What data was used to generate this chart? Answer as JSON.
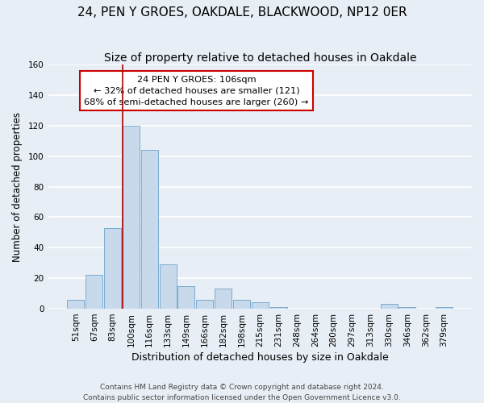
{
  "title": "24, PEN Y GROES, OAKDALE, BLACKWOOD, NP12 0ER",
  "subtitle": "Size of property relative to detached houses in Oakdale",
  "xlabel": "Distribution of detached houses by size in Oakdale",
  "ylabel": "Number of detached properties",
  "bar_labels": [
    "51sqm",
    "67sqm",
    "83sqm",
    "100sqm",
    "116sqm",
    "133sqm",
    "149sqm",
    "166sqm",
    "182sqm",
    "198sqm",
    "215sqm",
    "231sqm",
    "248sqm",
    "264sqm",
    "280sqm",
    "297sqm",
    "313sqm",
    "330sqm",
    "346sqm",
    "362sqm",
    "379sqm"
  ],
  "bar_values": [
    6,
    22,
    53,
    120,
    104,
    29,
    15,
    6,
    13,
    6,
    4,
    1,
    0,
    0,
    0,
    0,
    0,
    3,
    1,
    0,
    1
  ],
  "bar_color": "#c9d9ec",
  "bar_edge_color": "#7aacd0",
  "highlight_line_index": 3,
  "highlight_line_color": "#aa0000",
  "ylim": [
    0,
    160
  ],
  "yticks": [
    0,
    20,
    40,
    60,
    80,
    100,
    120,
    140,
    160
  ],
  "annotation_line1": "24 PEN Y GROES: 106sqm",
  "annotation_line2": "← 32% of detached houses are smaller (121)",
  "annotation_line3": "68% of semi-detached houses are larger (260) →",
  "footer_line1": "Contains HM Land Registry data © Crown copyright and database right 2024.",
  "footer_line2": "Contains public sector information licensed under the Open Government Licence v3.0.",
  "bg_color": "#e8eef5",
  "plot_bg_color": "#e8eef5",
  "grid_color": "#ffffff",
  "title_fontsize": 11,
  "subtitle_fontsize": 10,
  "xlabel_fontsize": 9,
  "ylabel_fontsize": 8.5,
  "tick_fontsize": 7.5,
  "footer_fontsize": 6.5
}
